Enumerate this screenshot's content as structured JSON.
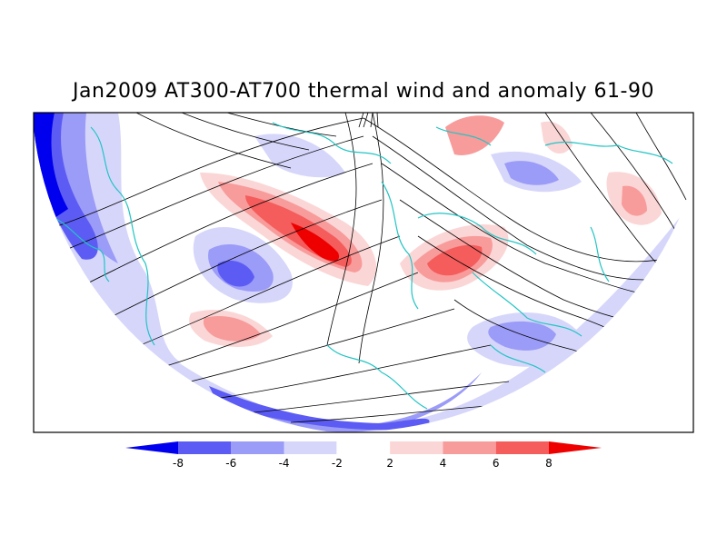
{
  "title": "Jan2009 AT300-AT700 thermal wind and anomaly 61-90",
  "colorbar": {
    "labels": [
      "-8",
      "-6",
      "-4",
      "-2",
      "2",
      "4",
      "6",
      "8"
    ],
    "bins": [
      {
        "color": "#0000ee"
      },
      {
        "color": "#5c5cf5"
      },
      {
        "color": "#9b9bf8"
      },
      {
        "color": "#d6d6fb"
      },
      {
        "color": "#ffffff"
      },
      {
        "color": "#fbd6d6"
      },
      {
        "color": "#f89b9b"
      },
      {
        "color": "#f55c5c"
      },
      {
        "color": "#ee0000"
      }
    ]
  },
  "colors": {
    "coastline": "#22c4c4",
    "streamline": "#000000",
    "frame": "#000000"
  }
}
